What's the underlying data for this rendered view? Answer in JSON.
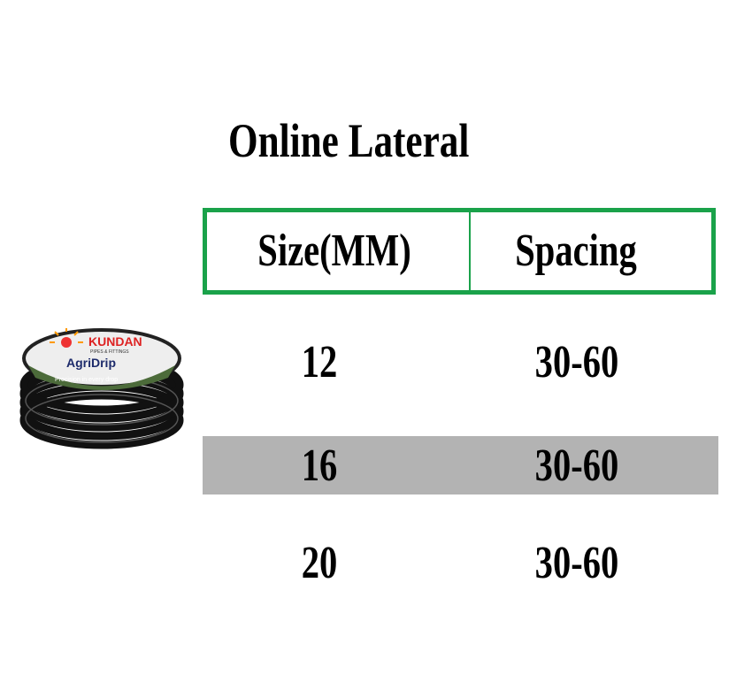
{
  "title": "Online Lateral",
  "product": {
    "brand": "KUNDAN",
    "brand_sub": "PIPES & FITTINGS",
    "product_name": "AgriDrip",
    "tagline": "Precision in every drop"
  },
  "table": {
    "headers": [
      "Size(MM)",
      "Spacing"
    ],
    "rows": [
      [
        "12",
        "30-60"
      ],
      [
        "16",
        "30-60"
      ],
      [
        "20",
        "30-60"
      ]
    ]
  },
  "colors": {
    "header_border": "#1aa24a",
    "highlight_row": "#b3b3b3"
  }
}
